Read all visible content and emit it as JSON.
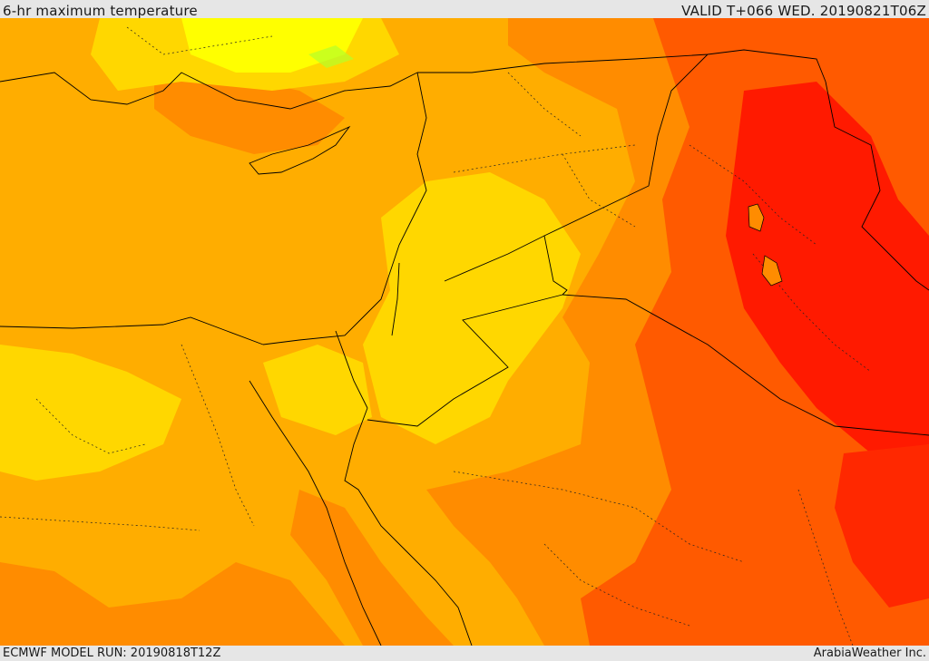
{
  "header": {
    "title": "6-hr maximum temperature",
    "valid": "VALID T+066 WED. 20190821T06Z"
  },
  "footer": {
    "model_run": "ECMWF MODEL RUN: 20190818T12Z",
    "credit": "ArabiaWeather Inc."
  },
  "colors": {
    "yellow_bright": "#ffff00",
    "yellow": "#ffd700",
    "orange_light": "#ffad00",
    "orange": "#ff8c00",
    "orange_red": "#ff5a00",
    "red": "#ff1a00",
    "green_patch": "#b5ff2a"
  }
}
